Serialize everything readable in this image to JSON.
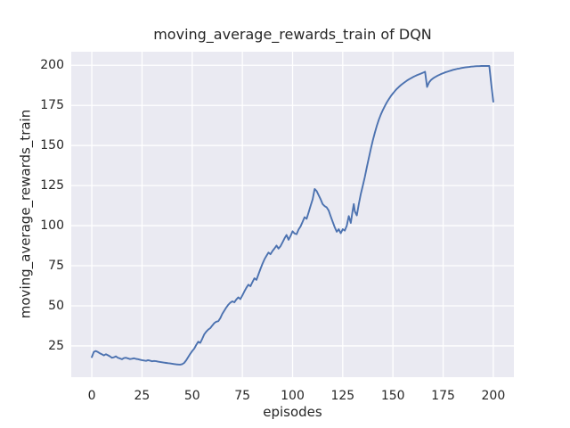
{
  "figure": {
    "title": "moving_average_rewards_train of DQN",
    "xlabel": "episodes",
    "ylabel": "moving_average_rewards_train"
  },
  "colors": {
    "line": "#4c72b0",
    "plot_background": "#eaeaf2",
    "grid": "#ffffff",
    "text": "#262626",
    "figure_background": "#ffffff"
  },
  "chart_data": {
    "type": "line",
    "title": "moving_average_rewards_train of DQN",
    "xlabel": "episodes",
    "ylabel": "moving_average_rewards_train",
    "xlim": [
      -10.25,
      210.25
    ],
    "ylim": [
      5.5,
      208.5
    ],
    "xticks": [
      0,
      25,
      50,
      75,
      100,
      125,
      150,
      175,
      200
    ],
    "yticks": [
      25,
      50,
      75,
      100,
      125,
      150,
      175,
      200
    ],
    "grid": true,
    "grid_style": "seaborn-darkgrid",
    "legend_position": "none",
    "series": [
      {
        "name": "moving_average_rewards_train",
        "color": "#4c72b0",
        "points": [
          [
            0,
            18.0
          ],
          [
            1,
            21.3
          ],
          [
            2,
            21.8
          ],
          [
            3,
            21.2
          ],
          [
            4,
            20.4
          ],
          [
            5,
            19.8
          ],
          [
            6,
            19.1
          ],
          [
            7,
            19.8
          ],
          [
            8,
            19.2
          ],
          [
            9,
            18.5
          ],
          [
            10,
            17.6
          ],
          [
            11,
            17.9
          ],
          [
            12,
            18.5
          ],
          [
            13,
            17.6
          ],
          [
            14,
            17.2
          ],
          [
            15,
            16.7
          ],
          [
            16,
            17.4
          ],
          [
            17,
            17.6
          ],
          [
            18,
            17.2
          ],
          [
            19,
            16.8
          ],
          [
            20,
            17.0
          ],
          [
            21,
            17.3
          ],
          [
            22,
            16.9
          ],
          [
            23,
            16.7
          ],
          [
            24,
            16.4
          ],
          [
            25,
            16.1
          ],
          [
            26,
            15.9
          ],
          [
            27,
            15.7
          ],
          [
            28,
            16.1
          ],
          [
            29,
            15.8
          ],
          [
            30,
            15.4
          ],
          [
            31,
            15.6
          ],
          [
            32,
            15.5
          ],
          [
            33,
            15.2
          ],
          [
            34,
            15.0
          ],
          [
            35,
            14.8
          ],
          [
            36,
            14.6
          ],
          [
            37,
            14.4
          ],
          [
            38,
            14.2
          ],
          [
            39,
            14.1
          ],
          [
            40,
            13.9
          ],
          [
            41,
            13.7
          ],
          [
            42,
            13.5
          ],
          [
            43,
            13.4
          ],
          [
            44,
            13.3
          ],
          [
            45,
            13.6
          ],
          [
            46,
            14.4
          ],
          [
            47,
            16.0
          ],
          [
            48,
            18.0
          ],
          [
            49,
            20.0
          ],
          [
            50,
            21.8
          ],
          [
            51,
            23.3
          ],
          [
            52,
            25.6
          ],
          [
            53,
            27.6
          ],
          [
            54,
            26.9
          ],
          [
            55,
            29.4
          ],
          [
            56,
            32.2
          ],
          [
            57,
            33.9
          ],
          [
            58,
            35.2
          ],
          [
            59,
            36.1
          ],
          [
            60,
            37.7
          ],
          [
            61,
            39.2
          ],
          [
            62,
            40.1
          ],
          [
            63,
            40.4
          ],
          [
            64,
            42.3
          ],
          [
            65,
            45.0
          ],
          [
            66,
            47.0
          ],
          [
            67,
            49.0
          ],
          [
            68,
            50.7
          ],
          [
            69,
            52.0
          ],
          [
            70,
            52.8
          ],
          [
            71,
            52.2
          ],
          [
            72,
            54.0
          ],
          [
            73,
            55.3
          ],
          [
            74,
            54.2
          ],
          [
            75,
            56.5
          ],
          [
            76,
            59.0
          ],
          [
            77,
            61.3
          ],
          [
            78,
            63.2
          ],
          [
            79,
            62.2
          ],
          [
            80,
            64.8
          ],
          [
            81,
            67.2
          ],
          [
            82,
            66.2
          ],
          [
            83,
            69.6
          ],
          [
            84,
            73.0
          ],
          [
            85,
            76.2
          ],
          [
            86,
            79.0
          ],
          [
            87,
            81.2
          ],
          [
            88,
            83.2
          ],
          [
            89,
            82.2
          ],
          [
            90,
            84.2
          ],
          [
            91,
            85.8
          ],
          [
            92,
            87.6
          ],
          [
            93,
            85.7
          ],
          [
            94,
            87.2
          ],
          [
            95,
            89.6
          ],
          [
            96,
            92.1
          ],
          [
            97,
            94.2
          ],
          [
            98,
            91.2
          ],
          [
            99,
            93.6
          ],
          [
            100,
            96.5
          ],
          [
            101,
            95.1
          ],
          [
            102,
            94.7
          ],
          [
            103,
            97.6
          ],
          [
            104,
            99.6
          ],
          [
            105,
            102.4
          ],
          [
            106,
            105.3
          ],
          [
            107,
            104.3
          ],
          [
            108,
            108.3
          ],
          [
            109,
            112.5
          ],
          [
            110,
            116.4
          ],
          [
            111,
            122.9
          ],
          [
            112,
            121.6
          ],
          [
            113,
            119.0
          ],
          [
            114,
            116.4
          ],
          [
            115,
            113.4
          ],
          [
            116,
            112.2
          ],
          [
            117,
            111.4
          ],
          [
            118,
            109.4
          ],
          [
            119,
            105.8
          ],
          [
            120,
            102.4
          ],
          [
            121,
            99.0
          ],
          [
            122,
            96.2
          ],
          [
            123,
            97.8
          ],
          [
            124,
            95.3
          ],
          [
            125,
            97.8
          ],
          [
            126,
            96.9
          ],
          [
            127,
            100.0
          ],
          [
            128,
            106.0
          ],
          [
            129,
            101.7
          ],
          [
            130,
            110.0
          ],
          [
            130.5,
            113.5
          ],
          [
            131,
            109.0
          ],
          [
            132,
            106.4
          ],
          [
            133,
            113.5
          ],
          [
            134,
            119.8
          ],
          [
            135,
            125.0
          ],
          [
            136,
            130.4
          ],
          [
            137,
            136.5
          ],
          [
            138,
            142.3
          ],
          [
            139,
            148.0
          ],
          [
            140,
            153.3
          ],
          [
            141,
            158.0
          ],
          [
            142,
            162.4
          ],
          [
            143,
            166.2
          ],
          [
            144,
            169.4
          ],
          [
            145,
            172.2
          ],
          [
            146,
            174.7
          ],
          [
            147,
            177.0
          ],
          [
            148,
            179.0
          ],
          [
            149,
            180.9
          ],
          [
            150,
            182.5
          ],
          [
            151,
            184.0
          ],
          [
            152,
            185.4
          ],
          [
            153,
            186.6
          ],
          [
            154,
            187.7
          ],
          [
            155,
            188.7
          ],
          [
            156,
            189.6
          ],
          [
            157,
            190.5
          ],
          [
            158,
            191.3
          ],
          [
            159,
            192.0
          ],
          [
            160,
            192.7
          ],
          [
            161,
            193.3
          ],
          [
            162,
            193.9
          ],
          [
            163,
            194.4
          ],
          [
            164,
            194.9
          ],
          [
            165,
            195.4
          ],
          [
            166,
            196.0
          ],
          [
            167,
            186.5
          ],
          [
            168,
            189.4
          ],
          [
            169,
            190.9
          ],
          [
            170,
            191.9
          ],
          [
            171,
            192.7
          ],
          [
            172,
            193.4
          ],
          [
            173,
            194.0
          ],
          [
            174,
            194.6
          ],
          [
            175,
            195.1
          ],
          [
            176,
            195.6
          ],
          [
            177,
            196.0
          ],
          [
            178,
            196.4
          ],
          [
            179,
            196.8
          ],
          [
            180,
            197.2
          ],
          [
            181,
            197.5
          ],
          [
            182,
            197.8
          ],
          [
            183,
            198.0
          ],
          [
            184,
            198.3
          ],
          [
            185,
            198.5
          ],
          [
            186,
            198.7
          ],
          [
            187,
            198.9
          ],
          [
            188,
            199.0
          ],
          [
            189,
            199.2
          ],
          [
            190,
            199.3
          ],
          [
            191,
            199.4
          ],
          [
            192,
            199.5
          ],
          [
            193,
            199.5
          ],
          [
            194,
            199.6
          ],
          [
            195,
            199.6
          ],
          [
            196,
            199.6
          ],
          [
            197,
            199.6
          ],
          [
            198,
            199.6
          ],
          [
            199,
            188.0
          ],
          [
            200,
            177.3
          ]
        ]
      }
    ]
  }
}
